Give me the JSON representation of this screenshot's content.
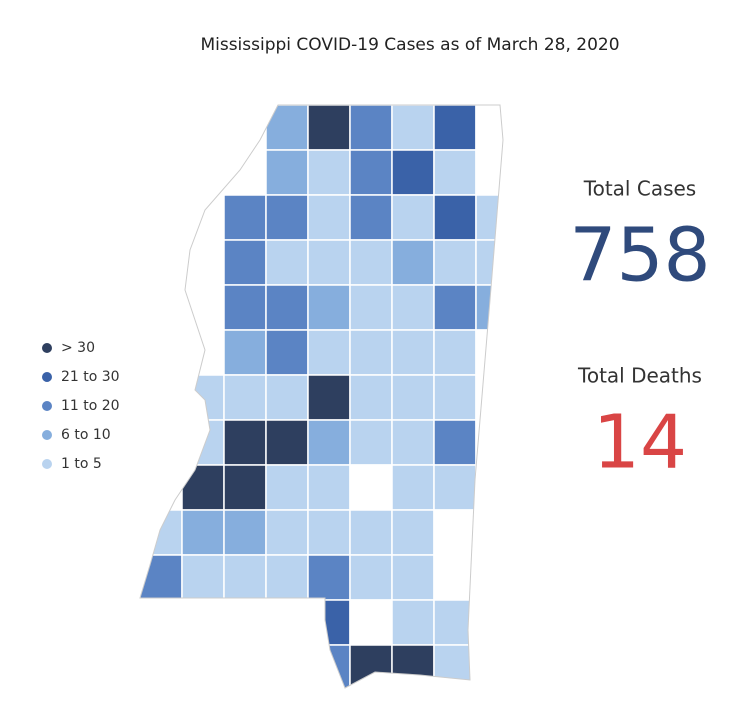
{
  "title": "Mississippi COVID-19 Cases as of March 28, 2020",
  "legend": [
    {
      "label": "> 30",
      "color": "#2e3f5f"
    },
    {
      "label": "21 to 30",
      "color": "#3a62a8"
    },
    {
      "label": "11 to 20",
      "color": "#5b84c4"
    },
    {
      "label": "6 to 10",
      "color": "#86aedd"
    },
    {
      "label": "1 to 5",
      "color": "#b9d3ef"
    }
  ],
  "stats": [
    {
      "label": "Total Cases",
      "value": 758,
      "color": "#2f4a7c"
    },
    {
      "label": "Total Deaths",
      "value": 14,
      "color": "#d94545"
    }
  ]
}
